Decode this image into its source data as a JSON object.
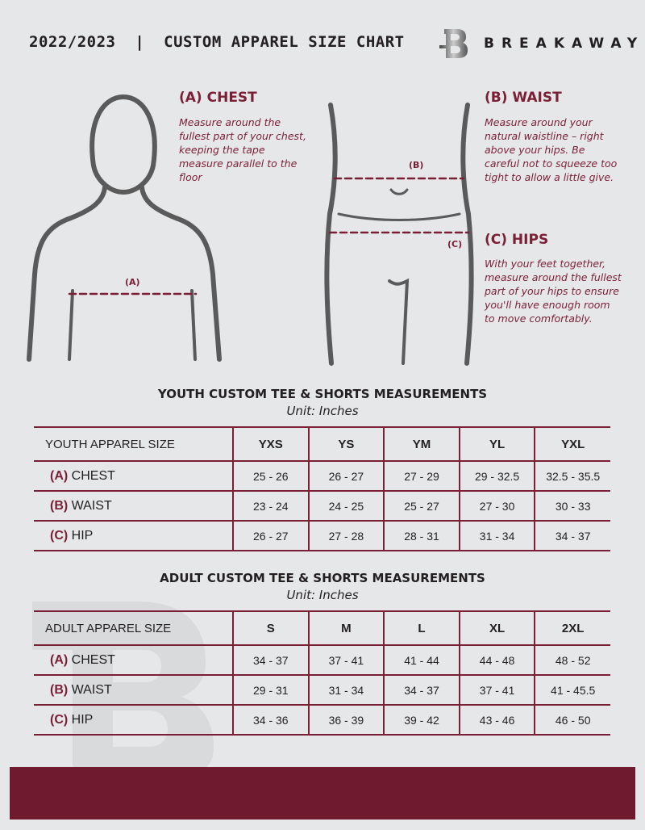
{
  "header": {
    "title": "2022/2023  |  CUSTOM APPAREL SIZE CHART",
    "brand": "BREAKAWAY"
  },
  "colors": {
    "accent": "#7a1f35",
    "background": "#e6e7e9",
    "footer": "#6f1a2f"
  },
  "chest": {
    "heading": "(A) CHEST",
    "text": "Measure around the fullest part of your chest, keeping the tape measure parallel to the floor",
    "marker": "(A)"
  },
  "waist": {
    "heading": "(B) WAIST",
    "text": "Measure around your natural waistline – right above your hips. Be careful not to squeeze too tight to allow a little give.",
    "marker": "(B)"
  },
  "hips": {
    "heading": "(C) HIPS",
    "text": "With your feet together, measure around the fullest part of your hips to ensure you'll have enough room to move comfortably.",
    "marker": "(C)"
  },
  "youth": {
    "title": "YOUTH CUSTOM TEE & SHORTS MEASUREMENTS",
    "unit": "Unit: Inches",
    "header": "YOUTH APPAREL SIZE",
    "sizes": [
      "YXS",
      "YS",
      "YM",
      "YL",
      "YXL"
    ],
    "rows": [
      {
        "code": "(A)",
        "label": "CHEST",
        "values": [
          "25 - 26",
          "26 - 27",
          "27 - 29",
          "29 - 32.5",
          "32.5 - 35.5"
        ]
      },
      {
        "code": "(B)",
        "label": "WAIST",
        "values": [
          "23 - 24",
          "24 - 25",
          "25 - 27",
          "27 - 30",
          "30 - 33"
        ]
      },
      {
        "code": "(C)",
        "label": "HIP",
        "values": [
          "26 - 27",
          "27 - 28",
          "28 - 31",
          "31 - 34",
          "34 - 37"
        ]
      }
    ]
  },
  "adult": {
    "title": "ADULT CUSTOM TEE & SHORTS MEASUREMENTS",
    "unit": "Unit: Inches",
    "header": "ADULT APPAREL SIZE",
    "sizes": [
      "S",
      "M",
      "L",
      "XL",
      "2XL"
    ],
    "rows": [
      {
        "code": "(A)",
        "label": "CHEST",
        "values": [
          "34 - 37",
          "37 - 41",
          "41 - 44",
          "44 - 48",
          "48 - 52"
        ]
      },
      {
        "code": "(B)",
        "label": "WAIST",
        "values": [
          "29 - 31",
          "31 - 34",
          "34 - 37",
          "37 - 41",
          "41 - 45.5"
        ]
      },
      {
        "code": "(C)",
        "label": "HIP",
        "values": [
          "34 - 36",
          "36 - 39",
          "39 - 42",
          "43 - 46",
          "46 - 50"
        ]
      }
    ]
  }
}
